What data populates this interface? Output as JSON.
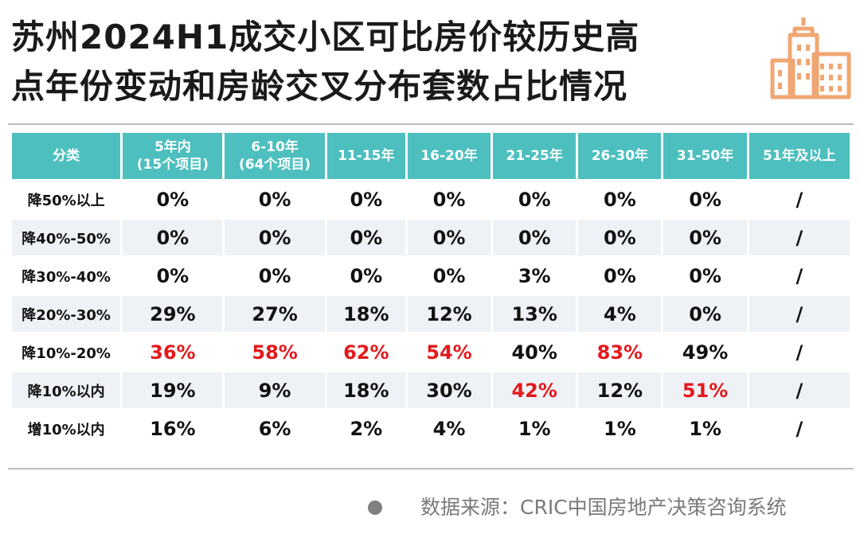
{
  "title_lines": [
    "苏州2024H1成交小区可比房价较历史高",
    "点年份变动和房龄交叉分布套数占比情况"
  ],
  "logo_icon": "city-buildings-icon",
  "colors": {
    "header_bg": "#4dbfbf",
    "stripe": "#eef2f6",
    "highlight": "#e4191c",
    "logo": "#f0a672"
  },
  "chart_data": {
    "type": "table",
    "columns": [
      [
        "分类"
      ],
      [
        "5年内",
        "(15个项目)"
      ],
      [
        "6-10年",
        "(64个项目)"
      ],
      [
        "11-15年"
      ],
      [
        "16-20年"
      ],
      [
        "21-25年"
      ],
      [
        "26-30年"
      ],
      [
        "31-50年"
      ],
      [
        "51年及以上"
      ]
    ],
    "rows": [
      {
        "label": "降50%以上",
        "cells": [
          {
            "v": "0%",
            "red": false
          },
          {
            "v": "0%",
            "red": false
          },
          {
            "v": "0%",
            "red": false
          },
          {
            "v": "0%",
            "red": false
          },
          {
            "v": "0%",
            "red": false
          },
          {
            "v": "0%",
            "red": false
          },
          {
            "v": "0%",
            "red": false
          },
          {
            "v": "/",
            "red": false
          }
        ]
      },
      {
        "label": "降40%-50%",
        "cells": [
          {
            "v": "0%",
            "red": false
          },
          {
            "v": "0%",
            "red": false
          },
          {
            "v": "0%",
            "red": false
          },
          {
            "v": "0%",
            "red": false
          },
          {
            "v": "0%",
            "red": false
          },
          {
            "v": "0%",
            "red": false
          },
          {
            "v": "0%",
            "red": false
          },
          {
            "v": "/",
            "red": false
          }
        ]
      },
      {
        "label": "降30%-40%",
        "cells": [
          {
            "v": "0%",
            "red": false
          },
          {
            "v": "0%",
            "red": false
          },
          {
            "v": "0%",
            "red": false
          },
          {
            "v": "0%",
            "red": false
          },
          {
            "v": "3%",
            "red": false
          },
          {
            "v": "0%",
            "red": false
          },
          {
            "v": "0%",
            "red": false
          },
          {
            "v": "/",
            "red": false
          }
        ]
      },
      {
        "label": "降20%-30%",
        "cells": [
          {
            "v": "29%",
            "red": false
          },
          {
            "v": "27%",
            "red": false
          },
          {
            "v": "18%",
            "red": false
          },
          {
            "v": "12%",
            "red": false
          },
          {
            "v": "13%",
            "red": false
          },
          {
            "v": "4%",
            "red": false
          },
          {
            "v": "0%",
            "red": false
          },
          {
            "v": "/",
            "red": false
          }
        ]
      },
      {
        "label": "降10%-20%",
        "cells": [
          {
            "v": "36%",
            "red": true
          },
          {
            "v": "58%",
            "red": true
          },
          {
            "v": "62%",
            "red": true
          },
          {
            "v": "54%",
            "red": true
          },
          {
            "v": "40%",
            "red": false
          },
          {
            "v": "83%",
            "red": true
          },
          {
            "v": "49%",
            "red": false
          },
          {
            "v": "/",
            "red": false
          }
        ]
      },
      {
        "label": "降10%以内",
        "cells": [
          {
            "v": "19%",
            "red": false
          },
          {
            "v": "9%",
            "red": false
          },
          {
            "v": "18%",
            "red": false
          },
          {
            "v": "30%",
            "red": false
          },
          {
            "v": "42%",
            "red": true
          },
          {
            "v": "12%",
            "red": false
          },
          {
            "v": "51%",
            "red": true
          },
          {
            "v": "/",
            "red": false
          }
        ]
      },
      {
        "label": "增10%以内",
        "cells": [
          {
            "v": "16%",
            "red": false
          },
          {
            "v": "6%",
            "red": false
          },
          {
            "v": "2%",
            "red": false
          },
          {
            "v": "4%",
            "red": false
          },
          {
            "v": "1%",
            "red": false
          },
          {
            "v": "1%",
            "red": false
          },
          {
            "v": "1%",
            "red": false
          },
          {
            "v": "/",
            "red": false
          }
        ]
      }
    ]
  },
  "source": {
    "bullet_icon": "bullet-dot-icon",
    "text": "数据来源：CRIC中国房地产决策咨询系统"
  }
}
